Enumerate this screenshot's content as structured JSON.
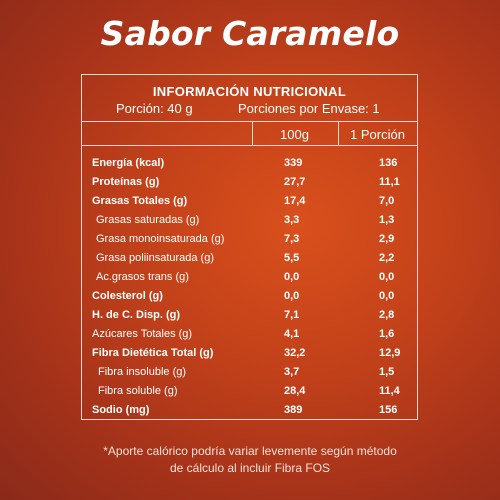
{
  "title": "Sabor Caramelo",
  "table": {
    "heading": "INFORMACIÓN NUTRICIONAL",
    "portion": "Porción: 40 g",
    "servings": "Porciones por Envase: 1",
    "col_100g": "100g",
    "col_portion": "1 Porción",
    "rows": [
      {
        "label": "Energía (kcal)",
        "v100": "339",
        "vportion": "136"
      },
      {
        "label": "Proteínas (g)",
        "v100": "27,7",
        "vportion": "11,1"
      },
      {
        "label": "Grasas Totales (g)",
        "v100": "17,4",
        "vportion": "7,0"
      },
      {
        "label": "Grasas saturadas (g)",
        "v100": "3,3",
        "vportion": "1,3"
      },
      {
        "label": "Grasa monoinsaturada (g)",
        "v100": "7,3",
        "vportion": "2,9"
      },
      {
        "label": "Grasa poliinsaturada (g)",
        "v100": "5,5",
        "vportion": "2,2"
      },
      {
        "label": "Ac.grasos trans (g)",
        "v100": "0,0",
        "vportion": "0,0"
      },
      {
        "label": "Colesterol (g)",
        "v100": "0,0",
        "vportion": "0,0"
      },
      {
        "label": "H. de C. Disp. (g)",
        "v100": "7,1",
        "vportion": "2,8"
      },
      {
        "label": "Azúcares Totales (g)",
        "v100": "4,1",
        "vportion": "1,6"
      },
      {
        "label": "Fibra Dietética Total (g)",
        "v100": "32,2",
        "vportion": "12,9"
      },
      {
        "label": "Fibra insoluble (g)",
        "v100": "3,7",
        "vportion": "1,5"
      },
      {
        "label": "Fibra soluble (g)",
        "v100": "28,4",
        "vportion": "11,4"
      },
      {
        "label": "Sodio (mg)",
        "v100": "389",
        "vportion": "156"
      }
    ]
  },
  "footnote": {
    "line1": "*Aporte calórico podría variar levemente según método",
    "line2": "de cálculo al incluir Fibra FOS"
  }
}
